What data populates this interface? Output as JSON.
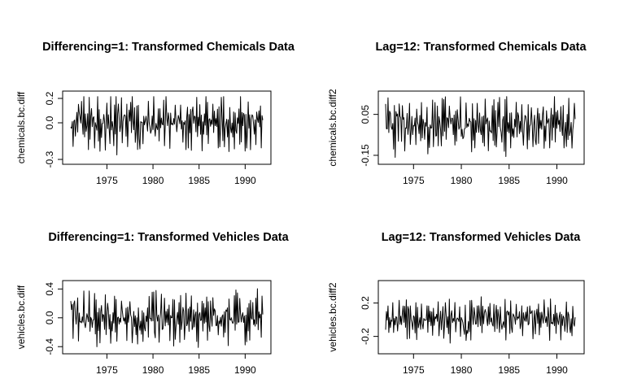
{
  "chart_data": [
    {
      "type": "line",
      "title": "Differencing=1: Transformed Chemicals Data",
      "xlabel": "",
      "ylabel": "chemicals.bc.diff",
      "xlim": [
        1971.08,
        1992.0
      ],
      "ylim": [
        -0.3,
        0.22
      ],
      "xticks": [
        1975,
        1980,
        1985,
        1990
      ],
      "xtick_labels": [
        "1975",
        "1980",
        "1985",
        "1990"
      ],
      "yticks": [
        -0.3,
        0.0,
        0.2
      ],
      "ytick_labels": [
        "-0.3",
        "0.0",
        "0.2"
      ],
      "start": 1971.08,
      "end": 1991.92,
      "amplitude": 0.24,
      "seed": 11,
      "series": [
        {
          "points": []
        }
      ]
    },
    {
      "type": "line",
      "title": "Lag=12: Transformed Chemicals Data",
      "xlabel": "",
      "ylabel": "chemicals.bc.diff2",
      "xlim": [
        1972.08,
        1992.0
      ],
      "ylim": [
        -0.17,
        0.14
      ],
      "xticks": [
        1975,
        1980,
        1985,
        1990
      ],
      "xtick_labels": [
        "1975",
        "1980",
        "1985",
        "1990"
      ],
      "yticks": [
        -0.15,
        0.05
      ],
      "ytick_labels": [
        "-0.15",
        "0.05"
      ],
      "start": 1972.08,
      "end": 1991.92,
      "amplitude": 0.14,
      "seed": 23,
      "series": [
        {
          "points": []
        }
      ]
    },
    {
      "type": "line",
      "title": "Differencing=1: Transformed Vehicles Data",
      "xlabel": "",
      "ylabel": "vehicles.bc.diff",
      "xlim": [
        1971.08,
        1992.0
      ],
      "ylim": [
        -0.42,
        0.46
      ],
      "xticks": [
        1975,
        1980,
        1985,
        1990
      ],
      "xtick_labels": [
        "1975",
        "1980",
        "1985",
        "1990"
      ],
      "yticks": [
        -0.4,
        0.0,
        0.4
      ],
      "ytick_labels": [
        "-0.4",
        "0.0",
        "0.4"
      ],
      "start": 1971.08,
      "end": 1991.92,
      "amplitude": 0.38,
      "seed": 37,
      "series": [
        {
          "points": []
        }
      ]
    },
    {
      "type": "line",
      "title": "Lag=12: Transformed Vehicles Data",
      "xlabel": "",
      "ylabel": "vehicles.bc.diff2",
      "xlim": [
        1972.08,
        1992.0
      ],
      "ylim": [
        -0.34,
        0.42
      ],
      "xticks": [
        1975,
        1980,
        1985,
        1990
      ],
      "xtick_labels": [
        "1975",
        "1980",
        "1985",
        "1990"
      ],
      "yticks": [
        -0.2,
        0.2
      ],
      "ytick_labels": [
        "-0.2",
        "0.2"
      ],
      "start": 1972.08,
      "end": 1991.92,
      "amplitude": 0.25,
      "seed": 53,
      "series": [
        {
          "points": []
        }
      ]
    }
  ]
}
